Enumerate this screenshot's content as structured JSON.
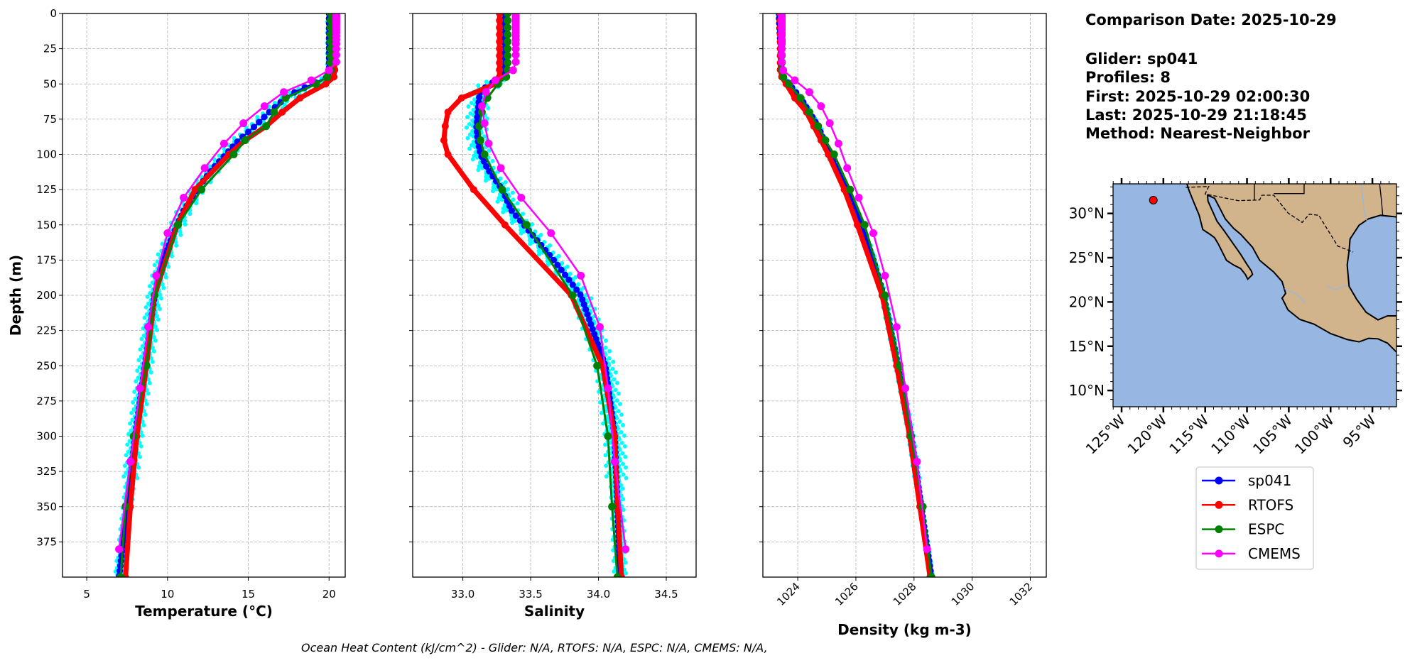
{
  "info": {
    "comparison_date": "Comparison Date: 2025-10-29",
    "glider": "Glider: sp041",
    "profiles": "Profiles: 8",
    "first": "First: 2025-10-29 02:00:30",
    "last": "Last: 2025-10-29 21:18:45",
    "method": "Method: Nearest-Neighbor"
  },
  "footer": "Ocean Heat Content (kJ/cm^2) - Glider: N/A,  RTOFS: N/A,  ESPC: N/A,  CMEMS: N/A,",
  "colors": {
    "sp041": "#0000ff",
    "RTOFS": "#ff0000",
    "ESPC": "#008000",
    "CMEMS": "#ff00ff",
    "individual_profiles": "#00ffff",
    "ocean": "#97b6e1",
    "land": "#d2b48c"
  },
  "legend": {
    "placement": "below-map",
    "entries": [
      "sp041",
      "RTOFS",
      "ESPC",
      "CMEMS"
    ]
  },
  "chart_data": [
    {
      "type": "line",
      "xlabel": "Temperature (°C)",
      "ylabel": "Depth (m)",
      "xlim": [
        3.5,
        21
      ],
      "ylim": [
        400,
        0
      ],
      "xticks": [
        "5",
        "10",
        "15",
        "20"
      ],
      "yticks": [
        "0",
        "25",
        "50",
        "75",
        "100",
        "125",
        "150",
        "175",
        "200",
        "225",
        "250",
        "275",
        "300",
        "325",
        "350",
        "375"
      ],
      "grid": true,
      "individual_profile_spread": 0.35,
      "series": [
        {
          "name": "sp041",
          "depth": [
            0,
            10,
            20,
            30,
            40,
            45,
            50,
            55,
            60,
            70,
            80,
            90,
            100,
            110,
            125,
            140,
            150,
            175,
            200,
            250,
            300,
            350,
            400
          ],
          "values": [
            20.0,
            20.0,
            20.0,
            20.0,
            20.0,
            19.9,
            19.0,
            18.0,
            17.3,
            16.3,
            15.4,
            14.4,
            13.6,
            12.8,
            11.8,
            11.0,
            10.6,
            9.7,
            9.2,
            8.6,
            8.0,
            7.5,
            7.0
          ]
        },
        {
          "name": "RTOFS",
          "depth": [
            0,
            5,
            10,
            15,
            20,
            25,
            30,
            35,
            40,
            45,
            50,
            60,
            70,
            80,
            90,
            100,
            125,
            150,
            200,
            250,
            300,
            350,
            400
          ],
          "values": [
            20.35,
            20.35,
            20.35,
            20.35,
            20.35,
            20.35,
            20.35,
            20.35,
            20.35,
            20.3,
            19.8,
            18.2,
            17.1,
            16.1,
            14.8,
            13.8,
            11.7,
            10.6,
            9.2,
            8.7,
            8.1,
            7.7,
            7.4
          ]
        },
        {
          "name": "ESPC",
          "depth": [
            0,
            5,
            10,
            15,
            20,
            25,
            30,
            35,
            40,
            45,
            50,
            60,
            70,
            80,
            90,
            100,
            125,
            150,
            200,
            250,
            300,
            350,
            400
          ],
          "values": [
            20.1,
            20.1,
            20.1,
            20.1,
            20.1,
            20.1,
            20.1,
            20.1,
            20.1,
            19.9,
            19.2,
            17.3,
            16.6,
            16.1,
            14.8,
            14.1,
            12.1,
            10.65,
            9.2,
            8.7,
            7.9,
            7.4,
            7.1
          ]
        },
        {
          "name": "CMEMS",
          "depth": [
            0.5,
            1.5,
            2.6,
            3.8,
            5.1,
            6.4,
            7.9,
            9.6,
            11.4,
            13.5,
            15.8,
            18.5,
            21.6,
            25.2,
            29.4,
            34.4,
            40.3,
            47.4,
            55.8,
            65.8,
            77.9,
            92.3,
            109.7,
            130.7,
            155.9,
            186.1,
            222.5,
            266.0,
            318.1,
            380.2
          ],
          "values": [
            20.45,
            20.45,
            20.45,
            20.45,
            20.45,
            20.45,
            20.45,
            20.45,
            20.45,
            20.45,
            20.45,
            20.45,
            20.45,
            20.45,
            20.45,
            20.45,
            20.0,
            18.9,
            17.2,
            16.0,
            14.7,
            13.5,
            12.3,
            11.0,
            10.0,
            9.3,
            8.8,
            8.3,
            7.7,
            7.0
          ]
        }
      ]
    },
    {
      "type": "line",
      "xlabel": "Salinity",
      "ylabel": "",
      "xlim": [
        32.63,
        34.72
      ],
      "ylim": [
        400,
        0
      ],
      "xticks": [
        "33.0",
        "33.5",
        "34.0",
        "34.5"
      ],
      "grid": true,
      "individual_profile_spread": 0.06,
      "series": [
        {
          "name": "sp041",
          "depth": [
            0,
            10,
            20,
            30,
            40,
            45,
            50,
            55,
            60,
            70,
            80,
            90,
            100,
            110,
            125,
            140,
            150,
            175,
            200,
            250,
            300,
            350,
            400
          ],
          "values": [
            33.31,
            33.31,
            33.31,
            33.31,
            33.31,
            33.29,
            33.2,
            33.13,
            33.12,
            33.11,
            33.1,
            33.11,
            33.13,
            33.18,
            33.29,
            33.36,
            33.45,
            33.67,
            33.87,
            34.05,
            34.12,
            34.14,
            34.16
          ]
        },
        {
          "name": "RTOFS",
          "depth": [
            0,
            5,
            10,
            15,
            20,
            25,
            30,
            35,
            40,
            45,
            50,
            60,
            70,
            80,
            90,
            100,
            125,
            150,
            200,
            250,
            300,
            350,
            400
          ],
          "values": [
            33.27,
            33.27,
            33.27,
            33.27,
            33.27,
            33.27,
            33.27,
            33.27,
            33.27,
            33.27,
            33.24,
            32.99,
            32.89,
            32.87,
            32.86,
            32.89,
            33.08,
            33.31,
            33.8,
            34.03,
            34.12,
            34.14,
            34.17
          ]
        },
        {
          "name": "ESPC",
          "depth": [
            0,
            5,
            10,
            15,
            20,
            25,
            30,
            35,
            40,
            45,
            50,
            60,
            70,
            80,
            90,
            100,
            125,
            150,
            200,
            250,
            300,
            350,
            400
          ],
          "values": [
            33.33,
            33.33,
            33.33,
            33.33,
            33.33,
            33.33,
            33.33,
            33.33,
            33.33,
            33.32,
            33.26,
            33.18,
            33.14,
            33.12,
            33.13,
            33.16,
            33.29,
            33.47,
            33.81,
            33.99,
            34.07,
            34.1,
            34.14
          ]
        },
        {
          "name": "CMEMS",
          "depth": [
            0.5,
            1.5,
            2.6,
            3.8,
            5.1,
            6.4,
            7.9,
            9.6,
            11.4,
            13.5,
            15.8,
            18.5,
            21.6,
            25.2,
            29.4,
            34.4,
            40.3,
            47.4,
            55.8,
            65.8,
            77.9,
            92.3,
            109.7,
            130.7,
            155.9,
            186.1,
            222.5,
            266.0,
            318.1,
            380.2
          ],
          "values": [
            33.39,
            33.39,
            33.39,
            33.39,
            33.39,
            33.39,
            33.39,
            33.39,
            33.39,
            33.39,
            33.39,
            33.39,
            33.39,
            33.39,
            33.39,
            33.39,
            33.37,
            33.24,
            33.17,
            33.14,
            33.16,
            33.19,
            33.28,
            33.43,
            33.65,
            33.87,
            34.01,
            34.07,
            34.12,
            34.2
          ]
        }
      ]
    },
    {
      "type": "line",
      "xlabel": "Density (kg m-3)",
      "ylabel": "",
      "xlim": [
        1022.8,
        1032.55
      ],
      "ylim": [
        400,
        0
      ],
      "xticks": [
        "1024",
        "1026",
        "1028",
        "1030",
        "1032"
      ],
      "grid": true,
      "individual_profile_spread": 0.08,
      "series": [
        {
          "name": "sp041",
          "depth": [
            0,
            10,
            20,
            30,
            40,
            45,
            50,
            55,
            60,
            70,
            80,
            90,
            100,
            110,
            125,
            140,
            150,
            175,
            200,
            250,
            300,
            350,
            400
          ],
          "values": [
            1023.35,
            1023.37,
            1023.4,
            1023.42,
            1023.45,
            1023.5,
            1023.7,
            1023.9,
            1024.1,
            1024.4,
            1024.7,
            1024.9,
            1025.1,
            1025.35,
            1025.7,
            1026.0,
            1026.2,
            1026.6,
            1026.95,
            1027.45,
            1027.9,
            1028.25,
            1028.6
          ]
        },
        {
          "name": "RTOFS",
          "depth": [
            0,
            5,
            10,
            15,
            20,
            25,
            30,
            35,
            40,
            45,
            50,
            60,
            70,
            80,
            90,
            100,
            125,
            150,
            200,
            250,
            300,
            350,
            400
          ],
          "values": [
            1023.4,
            1023.4,
            1023.4,
            1023.4,
            1023.4,
            1023.4,
            1023.4,
            1023.4,
            1023.4,
            1023.45,
            1023.6,
            1023.9,
            1024.3,
            1024.55,
            1024.8,
            1025.05,
            1025.6,
            1026.05,
            1026.9,
            1027.4,
            1027.85,
            1028.2,
            1028.55
          ]
        },
        {
          "name": "ESPC",
          "depth": [
            0,
            5,
            10,
            15,
            20,
            25,
            30,
            35,
            40,
            45,
            50,
            60,
            70,
            80,
            90,
            100,
            125,
            150,
            200,
            250,
            300,
            350,
            400
          ],
          "values": [
            1023.45,
            1023.45,
            1023.45,
            1023.45,
            1023.45,
            1023.45,
            1023.45,
            1023.45,
            1023.45,
            1023.5,
            1023.7,
            1024.1,
            1024.4,
            1024.7,
            1024.95,
            1025.25,
            1025.8,
            1026.3,
            1027.0,
            1027.5,
            1027.9,
            1028.3,
            1028.6
          ]
        },
        {
          "name": "CMEMS",
          "depth": [
            0.5,
            1.5,
            2.6,
            3.8,
            5.1,
            6.4,
            7.9,
            9.6,
            11.4,
            13.5,
            15.8,
            18.5,
            21.6,
            25.2,
            29.4,
            34.4,
            40.3,
            47.4,
            55.8,
            65.8,
            77.9,
            92.3,
            109.7,
            130.7,
            155.9,
            186.1,
            222.5,
            266.0,
            318.1,
            380.2
          ],
          "values": [
            1023.45,
            1023.45,
            1023.45,
            1023.45,
            1023.45,
            1023.45,
            1023.45,
            1023.45,
            1023.45,
            1023.45,
            1023.45,
            1023.45,
            1023.45,
            1023.45,
            1023.45,
            1023.45,
            1023.5,
            1023.9,
            1024.4,
            1024.8,
            1025.1,
            1025.4,
            1025.7,
            1026.1,
            1026.6,
            1027.0,
            1027.4,
            1027.7,
            1028.1,
            1028.45
          ]
        }
      ]
    },
    {
      "type": "map",
      "lon_range": [
        -126,
        -92.1
      ],
      "lat_range": [
        8.2,
        33.4
      ],
      "lat_ticks": [
        "10°N",
        "15°N",
        "20°N",
        "25°N",
        "30°N"
      ],
      "lon_ticks": [
        "125°W",
        "120°W",
        "115°W",
        "110°W",
        "105°W",
        "100°W",
        "95°W"
      ],
      "glider_location": {
        "lon": -121.2,
        "lat": 31.5
      }
    }
  ]
}
